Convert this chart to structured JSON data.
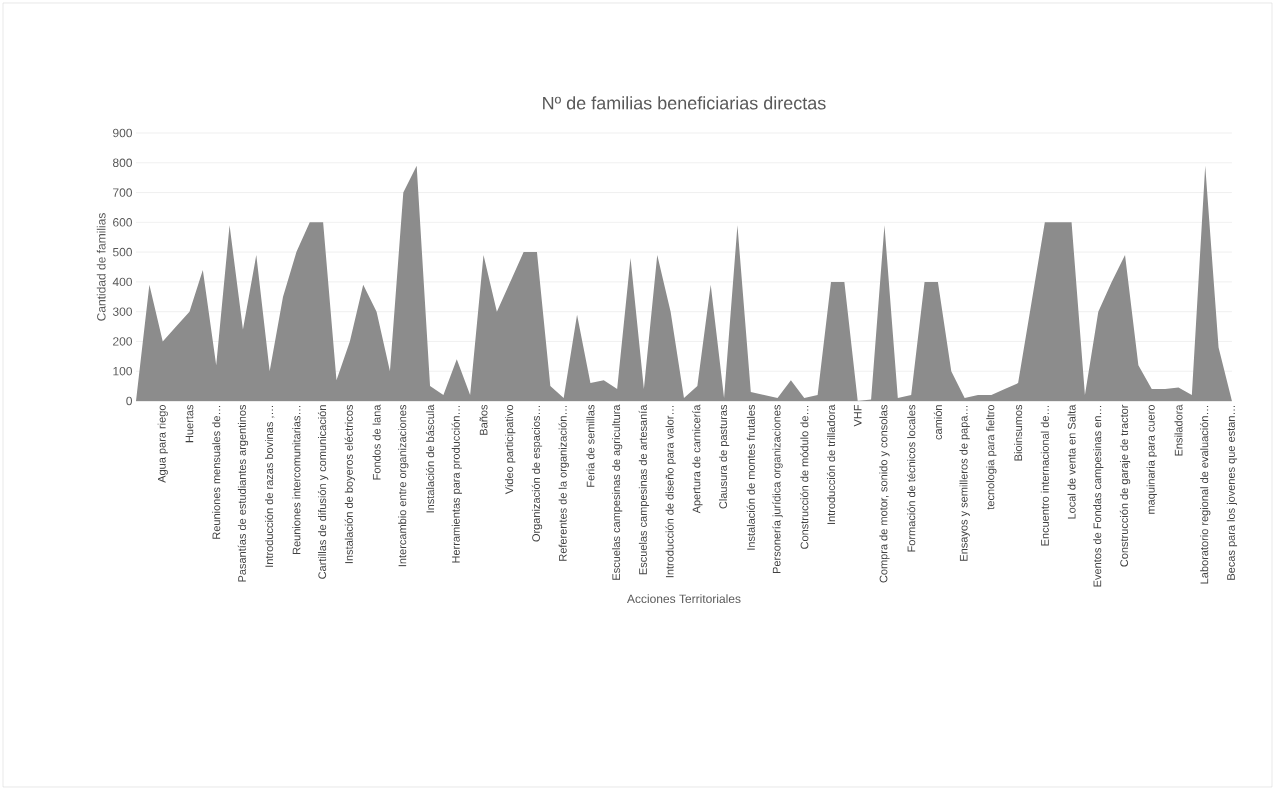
{
  "chart_data": {
    "type": "area",
    "title": "Nº de familias beneficiarias directas",
    "xlabel": "Acciones Territoriales",
    "ylabel": "Cantidad de familias",
    "categories": [
      null,
      null,
      "Agua para riego",
      null,
      "Huertas",
      null,
      "Reuniones mensuales de…",
      null,
      "Pasantías de estudiantes argentinos",
      null,
      "Introducción de razas bovinas ,…",
      null,
      "Reuniones intercomunitarias…",
      null,
      "Cartillas de difusión y comunicación",
      null,
      "Instalación de boyeros eléctricos",
      null,
      "Fondos de lana",
      null,
      "Intercambio entre organizaciones",
      null,
      "Instalación de báscula",
      null,
      "Herramientas para producción…",
      null,
      "Baños",
      null,
      "Video participativo",
      null,
      "Organización de espacios…",
      null,
      "Referentes de la organización…",
      null,
      "Feria de semillas",
      null,
      "Escuelas campesinas de agricultura",
      null,
      "Escuelas campesinas de artesanía",
      null,
      "Introducción de diseño para valor…",
      null,
      "Apertura de carnicería",
      null,
      "Clausura de pasturas",
      null,
      "Instalación de montes frutales",
      null,
      "Personería jurídica organizaciones",
      null,
      "Construcción de módulo de…",
      null,
      "Introducción de trilladora",
      null,
      "VHF",
      null,
      "Compra de motor, sonido y consolas",
      null,
      "Formación de técnicos locales",
      null,
      "camión",
      null,
      "Ensayos y semilleros de papa…",
      null,
      "tecnologia para fieltro",
      null,
      "Bioinsumos",
      null,
      "Encuentro internacional de…",
      null,
      "Local de venta en Salta",
      null,
      "Eventos de Fondas campesinas en…",
      null,
      "Construcción de garaje de tractor",
      null,
      "maquinaria para cuero",
      null,
      "Ensiladora",
      null,
      "Laboratorio regional de evaluación…",
      null,
      "Becas para los jovenes que estan…"
    ],
    "values": [
      0,
      390,
      200,
      250,
      300,
      440,
      120,
      590,
      240,
      490,
      100,
      350,
      500,
      600,
      600,
      70,
      200,
      390,
      300,
      100,
      700,
      790,
      50,
      20,
      140,
      20,
      490,
      300,
      400,
      500,
      500,
      50,
      10,
      290,
      60,
      70,
      40,
      480,
      40,
      490,
      300,
      10,
      50,
      390,
      10,
      590,
      30,
      20,
      10,
      70,
      10,
      20,
      400,
      400,
      0,
      5,
      590,
      10,
      20,
      400,
      400,
      100,
      10,
      20,
      20,
      40,
      60,
      330,
      600,
      600,
      600,
      20,
      300,
      400,
      490,
      120,
      40,
      40,
      45,
      20,
      790,
      180,
      0
    ],
    "color": "#8c8c8c",
    "ylim": [
      0,
      900
    ],
    "yticks": [
      0,
      100,
      200,
      300,
      400,
      500,
      600,
      700,
      800,
      900
    ],
    "grid": "y"
  }
}
